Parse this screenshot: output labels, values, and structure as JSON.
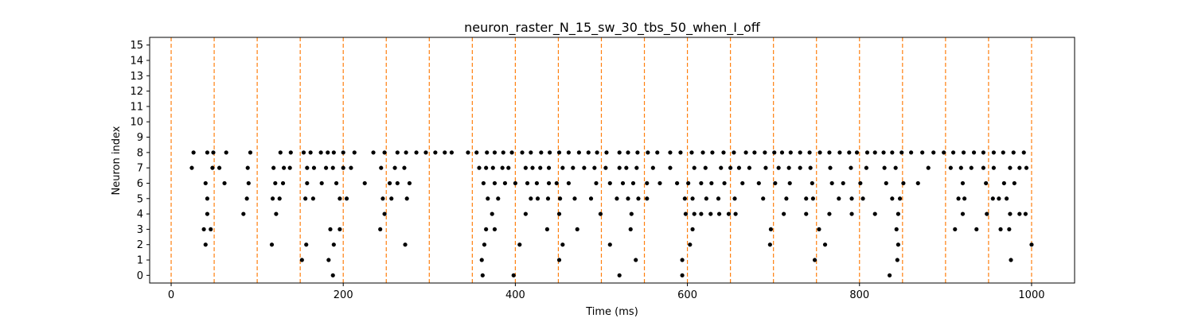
{
  "chart_data": {
    "type": "scatter",
    "title": "neuron_raster_N_15_sw_30_tbs_50_when_I_off",
    "xlabel": "Time (ms)",
    "ylabel": "Neuron index",
    "xlim": [
      -25,
      1050
    ],
    "ylim": [
      -0.5,
      15.5
    ],
    "x_ticks": [
      0,
      200,
      400,
      600,
      800,
      1000
    ],
    "x_tick_labels": [
      "0",
      "200",
      "400",
      "600",
      "800",
      "1000"
    ],
    "y_ticks": [
      0,
      1,
      2,
      3,
      4,
      5,
      6,
      7,
      8,
      9,
      10,
      11,
      12,
      13,
      14,
      15
    ],
    "y_tick_labels": [
      "0",
      "1",
      "2",
      "3",
      "4",
      "5",
      "6",
      "7",
      "8",
      "9",
      "10",
      "11",
      "12",
      "13",
      "14",
      "15"
    ],
    "grid": false,
    "marker_color": "#000000",
    "vline_color": "#ff7f0e",
    "vlines": [
      0,
      50,
      100,
      150,
      200,
      250,
      300,
      350,
      400,
      450,
      500,
      550,
      600,
      650,
      700,
      750,
      800,
      850,
      900,
      950,
      1000
    ],
    "spikes": [
      {
        "neuron": 0,
        "times": [
          188,
          362,
          398,
          521,
          594,
          835
        ]
      },
      {
        "neuron": 1,
        "times": [
          152,
          183,
          361,
          451,
          540,
          594,
          748,
          844,
          976
        ]
      },
      {
        "neuron": 2,
        "times": [
          40,
          117,
          157,
          189,
          272,
          364,
          405,
          455,
          510,
          603,
          696,
          760,
          845,
          1000
        ]
      },
      {
        "neuron": 3,
        "times": [
          38,
          46,
          185,
          196,
          243,
          366,
          376,
          437,
          472,
          534,
          606,
          697,
          753,
          843,
          911,
          936,
          964,
          974
        ]
      },
      {
        "neuron": 4,
        "times": [
          42,
          84,
          122,
          248,
          373,
          412,
          451,
          499,
          535,
          598,
          608,
          616,
          627,
          637,
          648,
          656,
          712,
          738,
          765,
          791,
          818,
          845,
          920,
          948,
          975,
          986,
          993
        ]
      },
      {
        "neuron": 5,
        "times": [
          42,
          88,
          118,
          126,
          156,
          165,
          196,
          204,
          246,
          256,
          274,
          368,
          380,
          418,
          426,
          438,
          452,
          469,
          488,
          518,
          531,
          543,
          553,
          597,
          606,
          622,
          636,
          655,
          688,
          715,
          738,
          746,
          776,
          791,
          804,
          838,
          847,
          915,
          922,
          955,
          962,
          971
        ]
      },
      {
        "neuron": 6,
        "times": [
          40,
          62,
          90,
          121,
          130,
          158,
          175,
          192,
          225,
          254,
          263,
          277,
          363,
          376,
          388,
          400,
          414,
          425,
          439,
          448,
          462,
          494,
          510,
          525,
          537,
          553,
          568,
          588,
          601,
          616,
          628,
          643,
          664,
          683,
          702,
          719,
          745,
          768,
          781,
          801,
          831,
          851,
          868,
          920,
          947,
          968,
          980
        ]
      },
      {
        "neuron": 7,
        "times": [
          24,
          48,
          56,
          89,
          119,
          131,
          138,
          158,
          166,
          180,
          188,
          200,
          209,
          244,
          260,
          271,
          358,
          366,
          374,
          385,
          392,
          412,
          420,
          429,
          439,
          455,
          467,
          480,
          492,
          505,
          521,
          529,
          541,
          560,
          580,
          608,
          621,
          639,
          650,
          660,
          672,
          691,
          706,
          718,
          731,
          743,
          766,
          790,
          808,
          829,
          842,
          880,
          906,
          918,
          930,
          944,
          956,
          975,
          986,
          994
        ]
      },
      {
        "neuron": 8,
        "times": [
          26,
          42,
          49,
          64,
          92,
          127,
          139,
          154,
          162,
          174,
          182,
          189,
          200,
          213,
          235,
          248,
          263,
          273,
          285,
          296,
          307,
          318,
          326,
          345,
          355,
          367,
          376,
          386,
          396,
          408,
          418,
          430,
          440,
          451,
          462,
          474,
          485,
          495,
          506,
          521,
          531,
          542,
          554,
          565,
          580,
          592,
          605,
          618,
          629,
          642,
          654,
          668,
          678,
          690,
          701,
          710,
          720,
          731,
          742,
          754,
          765,
          777,
          788,
          797,
          809,
          818,
          828,
          838,
          849,
          860,
          873,
          886,
          898,
          909,
          921,
          933,
          944,
          956,
          967,
          979,
          991
        ]
      }
    ]
  }
}
